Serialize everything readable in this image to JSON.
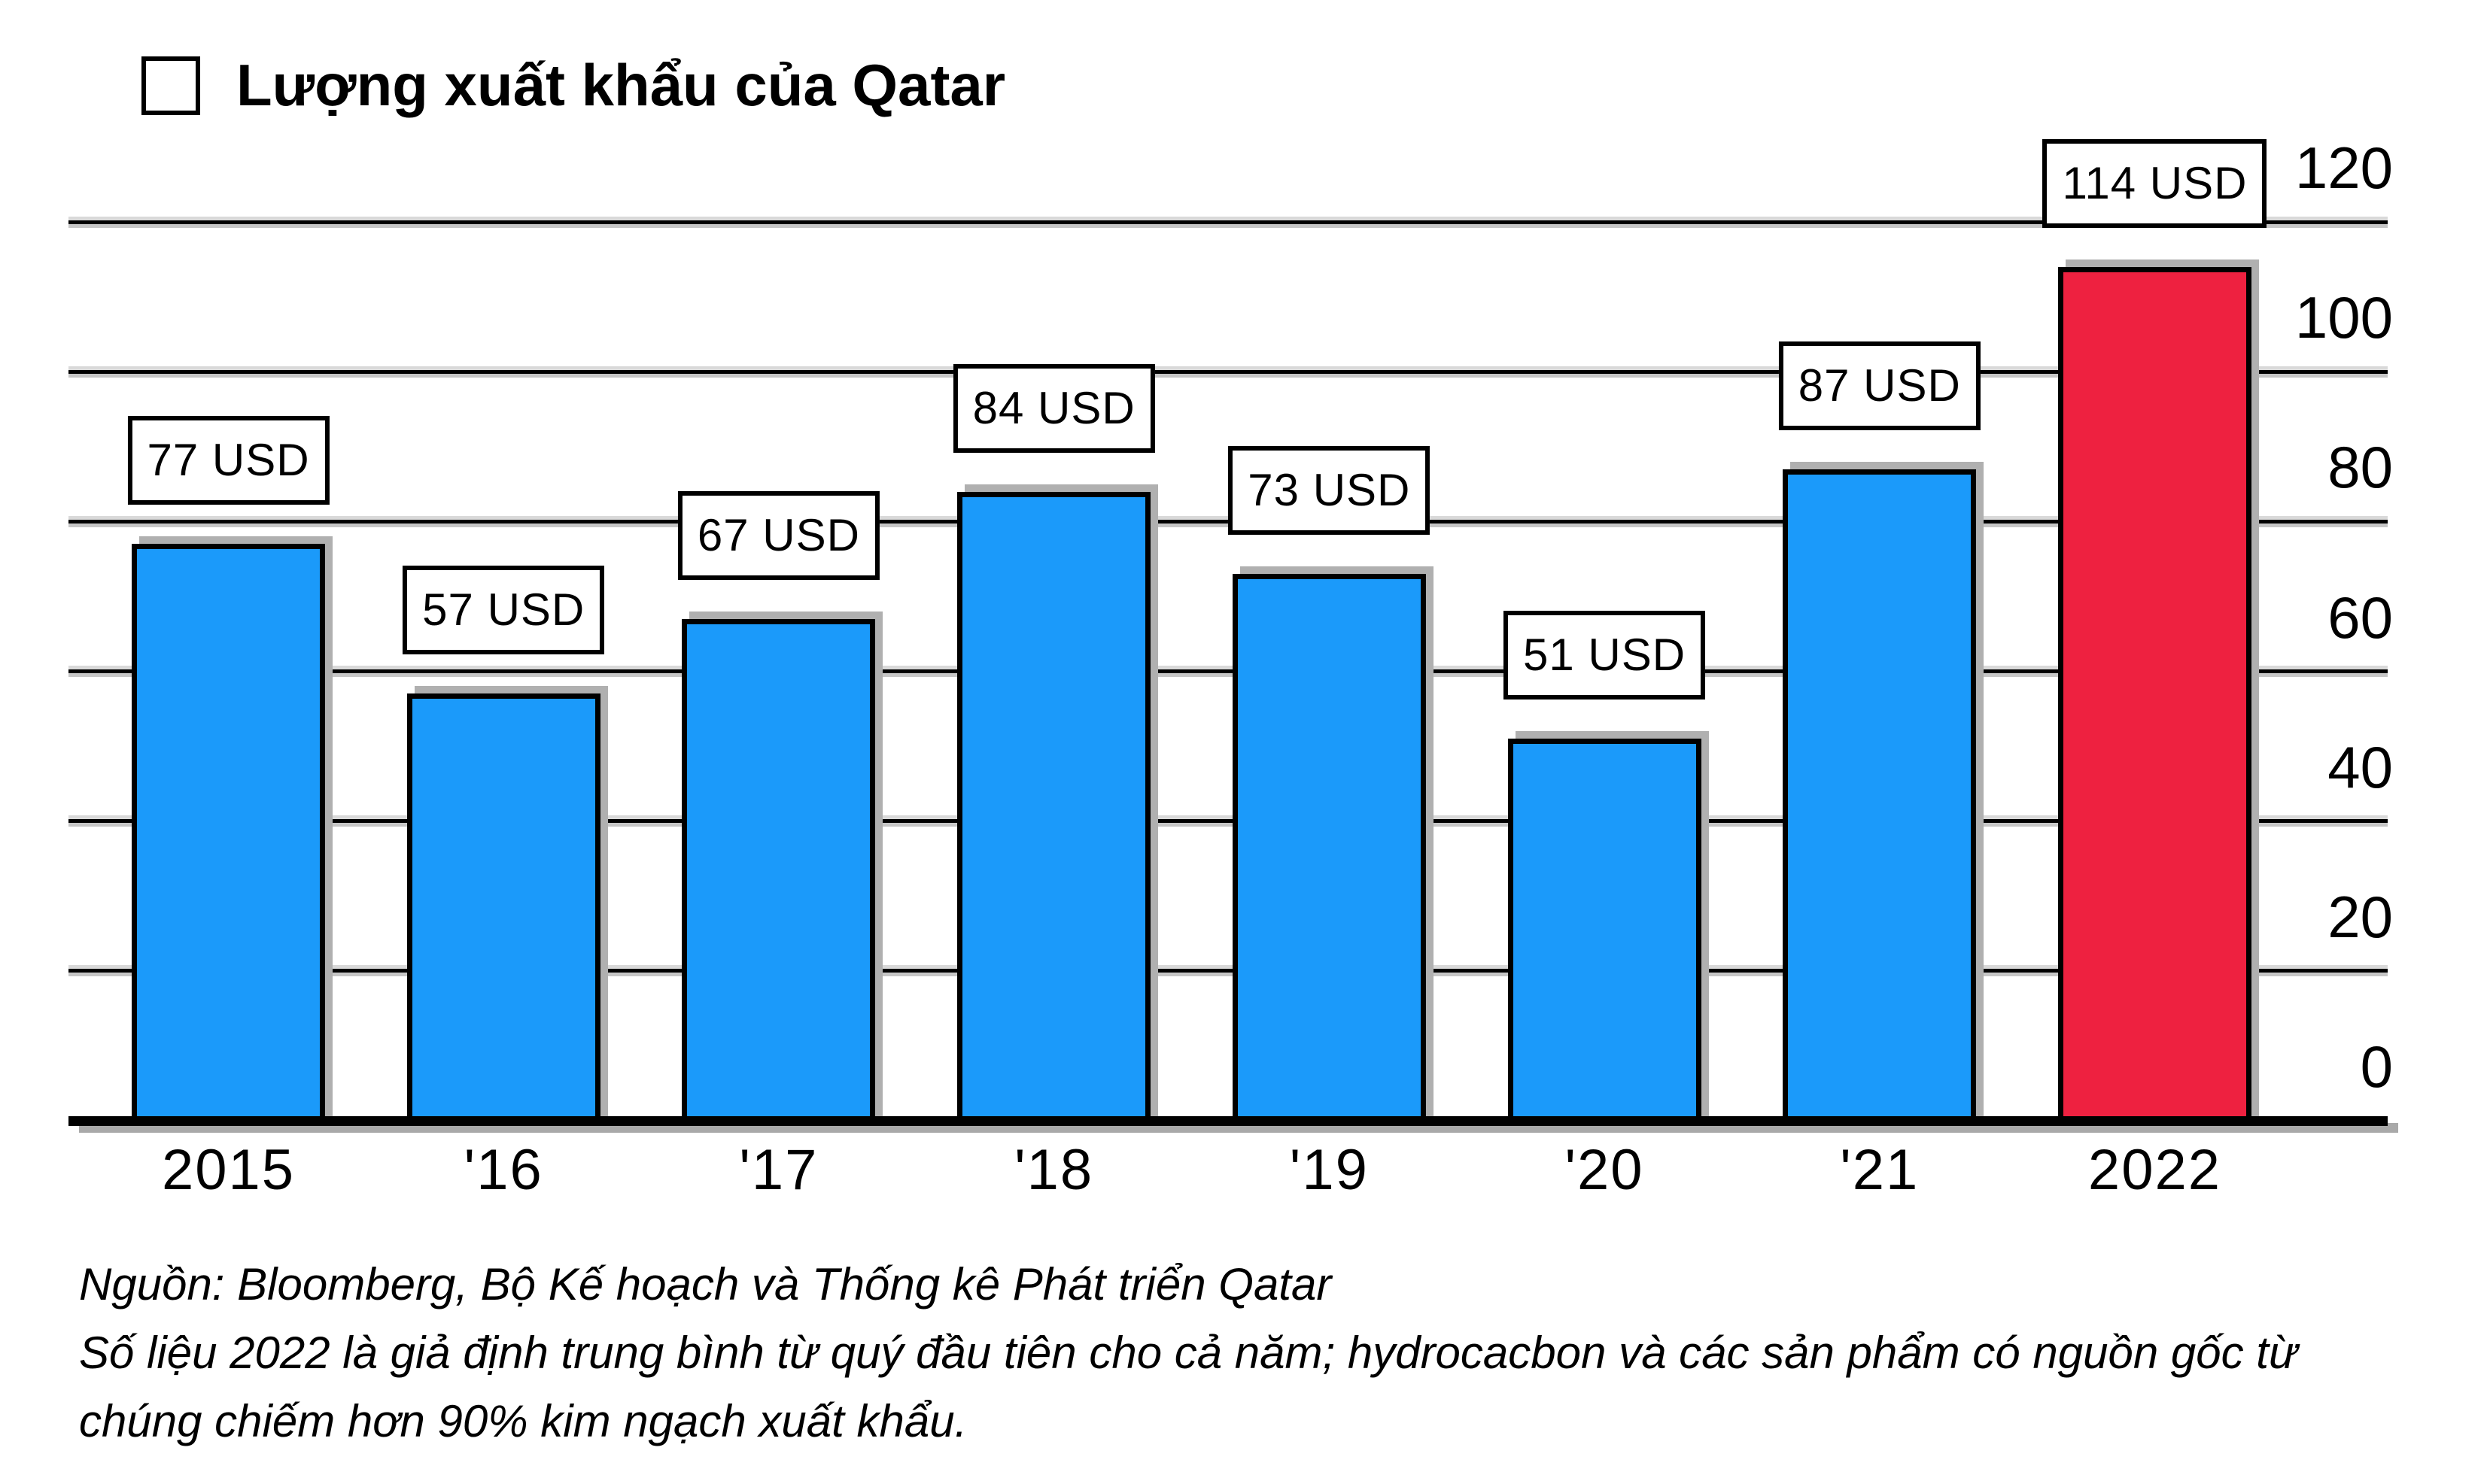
{
  "legend": {
    "label": "Lượng xuất khẩu của Qatar"
  },
  "chart_data": {
    "type": "bar",
    "title": "Lượng xuất khẩu của Qatar",
    "categories": [
      "2015",
      "'16",
      "'17",
      "'18",
      "'19",
      "'20",
      "'21",
      "2022"
    ],
    "series": [
      {
        "name": "Lượng xuất khẩu của Qatar",
        "values": [
          77,
          57,
          67,
          84,
          73,
          51,
          87,
          114
        ]
      }
    ],
    "bar_labels": [
      "77 USD",
      "57 USD",
      "67 USD",
      "84 USD",
      "73 USD",
      "51 USD",
      "87 USD",
      "114 USD"
    ],
    "unit": "USD",
    "highlight_category": "2022",
    "ylim": [
      0,
      120
    ],
    "yticks": [
      0,
      20,
      40,
      60,
      80,
      100,
      120
    ],
    "grid": true,
    "legend_position": "top-left",
    "axis_labels_side": "right",
    "colors": {
      "bar_default": "#1b9afa",
      "bar_highlight": "#ee2140",
      "bar_border": "#000000",
      "gridline": "#000000",
      "shadow": "#b0b0b0"
    }
  },
  "footer": {
    "lines": [
      "Nguồn: Bloomberg, Bộ Kế hoạch và Thống kê Phát triển Qatar",
      "Số liệu 2022 là giả định trung bình từ quý đầu tiên cho cả năm; hydrocacbon và các sản phẩm có nguồn gốc từ",
      "chúng chiếm hơn 90% kim ngạch xuất khẩu."
    ]
  }
}
